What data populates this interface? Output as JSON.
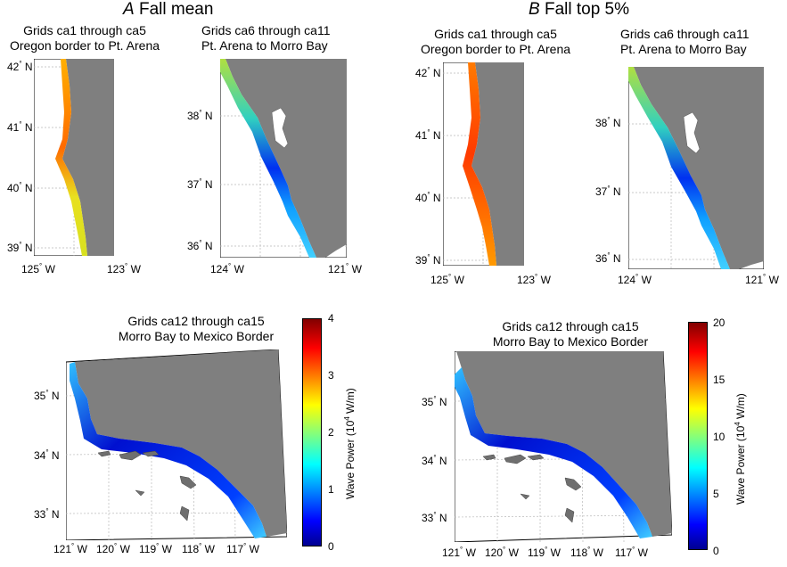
{
  "panel_a": {
    "letter": "A",
    "title": "Fall mean",
    "north_map": {
      "title_line1": "Grids ca1 through ca5",
      "title_line2": "Oregon border to Pt. Arena",
      "lat_ticks": [
        "42",
        "41",
        "40",
        "39"
      ],
      "lon_ticks": [
        "125",
        "123"
      ]
    },
    "central_map": {
      "title_line1": "Grids ca6 through ca11",
      "title_line2": "Pt. Arena to Morro Bay",
      "lat_ticks": [
        "38",
        "37",
        "36"
      ],
      "lon_ticks": [
        "124",
        "121"
      ]
    },
    "south_map": {
      "title_line1": "Grids ca12 through ca15",
      "title_line2": "Morro Bay to Mexico Border",
      "lat_ticks": [
        "35",
        "34",
        "33"
      ],
      "lon_ticks": [
        "121",
        "120",
        "119",
        "118",
        "117"
      ]
    },
    "colorbar": {
      "title": "Wave Power (10",
      "exp": "4",
      "unit": " W/m)",
      "ticks": [
        "4",
        "3",
        "2",
        "1",
        "0"
      ]
    }
  },
  "panel_b": {
    "letter": "B",
    "title": "Fall top 5%",
    "north_map": {
      "title_line1": "Grids ca1 through ca5",
      "title_line2": "Oregon border to Pt. Arena",
      "lat_ticks": [
        "42",
        "41",
        "40",
        "39"
      ],
      "lon_ticks": [
        "125",
        "123"
      ]
    },
    "central_map": {
      "title_line1": "Grids ca6 through ca11",
      "title_line2": "Pt. Arena to Morro Bay",
      "lat_ticks": [
        "38",
        "37",
        "36"
      ],
      "lon_ticks": [
        "124",
        "121"
      ]
    },
    "south_map": {
      "title_line1": "Grids ca12 through ca15",
      "title_line2": "Morro Bay to Mexico Border",
      "lat_ticks": [
        "35",
        "34",
        "33"
      ],
      "lon_ticks": [
        "121",
        "120",
        "119",
        "118",
        "117"
      ]
    },
    "colorbar": {
      "title": "Wave Power (10",
      "exp": "4",
      "unit": " W/m)",
      "ticks": [
        "20",
        "15",
        "10",
        "5",
        "0"
      ]
    }
  },
  "symbols": {
    "degree": "°",
    "north": "N",
    "west": "W"
  },
  "colors": {
    "land": "#7f7f7f",
    "grid": "#b9b9b9",
    "water": "#ffffff"
  }
}
